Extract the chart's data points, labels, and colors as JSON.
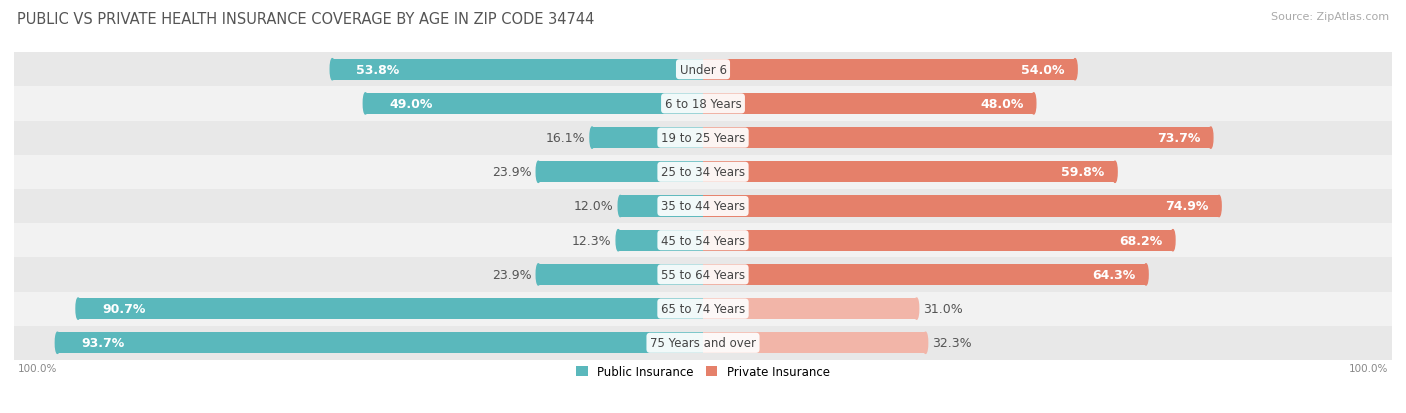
{
  "title": "PUBLIC VS PRIVATE HEALTH INSURANCE COVERAGE BY AGE IN ZIP CODE 34744",
  "source": "Source: ZipAtlas.com",
  "categories": [
    "Under 6",
    "6 to 18 Years",
    "19 to 25 Years",
    "25 to 34 Years",
    "35 to 44 Years",
    "45 to 54 Years",
    "55 to 64 Years",
    "65 to 74 Years",
    "75 Years and over"
  ],
  "public_values": [
    53.8,
    49.0,
    16.1,
    23.9,
    12.0,
    12.3,
    23.9,
    90.7,
    93.7
  ],
  "private_values": [
    54.0,
    48.0,
    73.7,
    59.8,
    74.9,
    68.2,
    64.3,
    31.0,
    32.3
  ],
  "public_color": "#5ab8bc",
  "private_color_high": "#e5806a",
  "private_color_low": "#f2b5a8",
  "row_bg_colors": [
    "#e8e8e8",
    "#f2f2f2"
  ],
  "public_label": "Public Insurance",
  "private_label": "Private Insurance",
  "max_value": 100.0,
  "bar_height": 0.62,
  "label_fontsize": 9.0,
  "title_fontsize": 10.5,
  "source_fontsize": 8.0,
  "title_color": "#555555",
  "source_color": "#aaaaaa",
  "label_color_dark": "#555555",
  "label_color_white": "#ffffff"
}
